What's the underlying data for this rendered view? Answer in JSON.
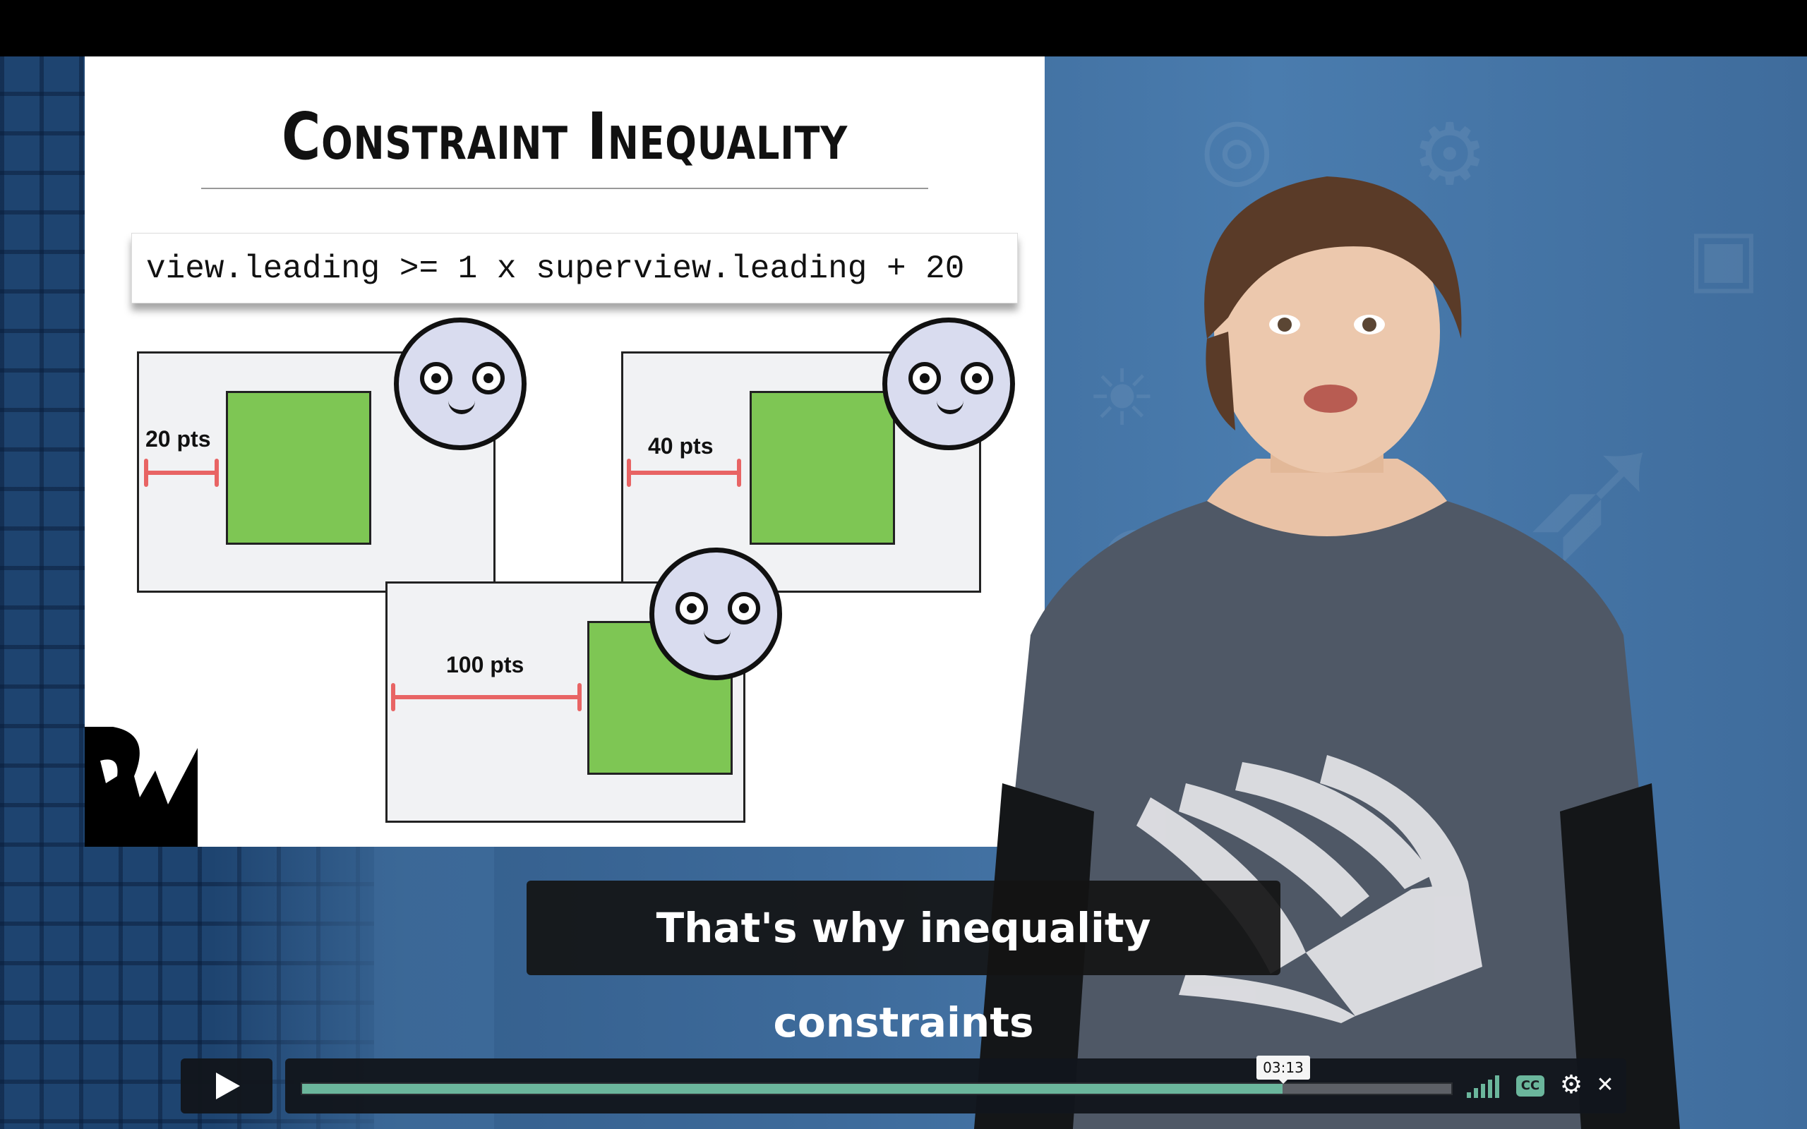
{
  "slide": {
    "title": "Constraint Inequality",
    "code": "view.leading >= 1 x superview.leading + 20",
    "examples": [
      {
        "label": "20 pts"
      },
      {
        "label": "40 pts"
      },
      {
        "label": "100 pts"
      }
    ]
  },
  "caption": {
    "text": "That's why inequality constraints"
  },
  "player": {
    "current_time": "03:13",
    "progress": 0.853,
    "cc_label": "CC",
    "settings_icon": "gear-icon",
    "fullscreen_icon": "collapse-icon",
    "play_icon": "play-icon",
    "volume_icon": "volume-bars-icon"
  },
  "colors": {
    "accent": "#6bb69c",
    "green_box": "#7ec654",
    "dimension_line": "#e86464",
    "background_blue": "#3d6a9a"
  }
}
